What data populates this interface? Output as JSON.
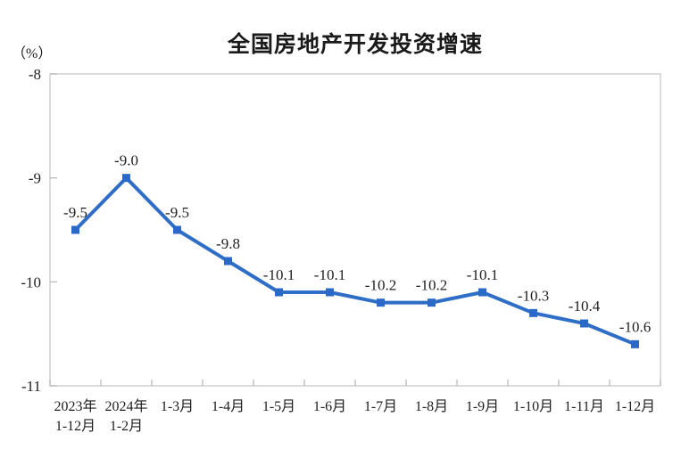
{
  "chart_data": {
    "type": "line",
    "title": "全国房地产开发投资增速",
    "ylabel": "（%）",
    "xlabel": "",
    "categories": [
      "2023年\n1-12月",
      "2024年\n1-2月",
      "1-3月",
      "1-4月",
      "1-5月",
      "1-6月",
      "1-7月",
      "1-8月",
      "1-9月",
      "1-10月",
      "1-11月",
      "1-12月"
    ],
    "values": [
      -9.5,
      -9.0,
      -9.5,
      -9.8,
      -10.1,
      -10.1,
      -10.2,
      -10.2,
      -10.1,
      -10.3,
      -10.4,
      -10.6
    ],
    "labels": [
      "-9.5",
      "-9.0",
      "-9.5",
      "-9.8",
      "-10.1",
      "-10.1",
      "-10.2",
      "-10.2",
      "-10.1",
      "-10.3",
      "-10.4",
      "-10.6"
    ],
    "ylim": [
      -11,
      -8
    ],
    "yticks": [
      -8,
      -9,
      -10,
      -11
    ],
    "grid": false,
    "legend": "none",
    "marker": "square",
    "line_color": "#2F6EC6",
    "marker_color": "#2A69C8",
    "axis_color": "#c9c9c9",
    "tick_color": "#b5b5b5",
    "text_color": "#1f1f1f"
  }
}
